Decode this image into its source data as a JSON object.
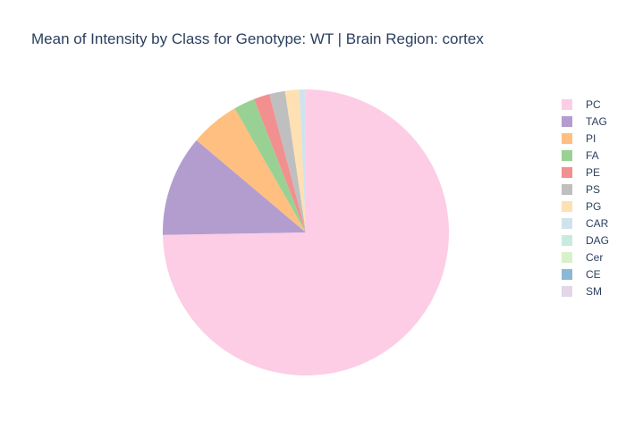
{
  "chart_data": {
    "type": "pie",
    "title": "Mean of Intensity by Class for Genotype: WT | Brain Region: cortex",
    "legend_position": "right",
    "direction": "clockwise",
    "start": "top",
    "slices": [
      {
        "label": "PC",
        "value": 75.2,
        "color": "#fccde5"
      },
      {
        "label": "TAG",
        "value": 11.5,
        "color": "#b39dcf"
      },
      {
        "label": "PI",
        "value": 5.6,
        "color": "#ffbf80"
      },
      {
        "label": "FA",
        "value": 2.4,
        "color": "#99d194"
      },
      {
        "label": "PE",
        "value": 1.8,
        "color": "#f28f8f"
      },
      {
        "label": "PS",
        "value": 1.8,
        "color": "#bfbfbf"
      },
      {
        "label": "PG",
        "value": 1.6,
        "color": "#ffe0b3"
      },
      {
        "label": "CAR",
        "value": 0.7,
        "color": "#cfe3ec"
      },
      {
        "label": "DAG",
        "value": 0.02,
        "color": "#c8ebe0"
      },
      {
        "label": "Cer",
        "value": 0.01,
        "color": "#d9f0c9"
      },
      {
        "label": "CE",
        "value": 0.005,
        "color": "#8bb8d6"
      },
      {
        "label": "SM",
        "value": 0.005,
        "color": "#e2d6e8"
      }
    ]
  }
}
